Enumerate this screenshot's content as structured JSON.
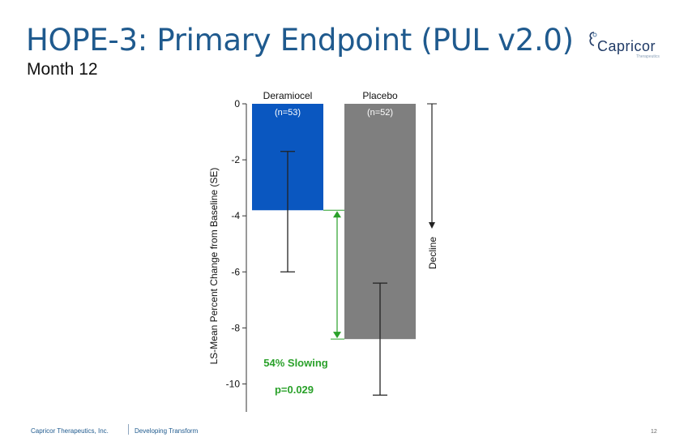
{
  "slide": {
    "title": "HOPE-3: Primary Endpoint (PUL v2.0)",
    "subtitle": "Month 12",
    "logo_text": "Capricor",
    "logo_sub": "Therapeutics",
    "footer_company": "Capricor Therapeutics, Inc.",
    "footer_tagline": "Developing Transform",
    "page_number": "12",
    "colors": {
      "title": "#1f5a8e",
      "logo": "#1f3a66"
    }
  },
  "chart_data": {
    "type": "bar",
    "categories": [
      "Deramiocel",
      "Placebo"
    ],
    "sample_sizes": [
      "(n=53)",
      "(n=52)"
    ],
    "values": [
      -3.8,
      -8.4
    ],
    "error_low": [
      -6.0,
      -10.4
    ],
    "error_high": [
      -1.7,
      -6.4
    ],
    "bar_colors": [
      "#0a57c0",
      "#7f7f7f"
    ],
    "ylabel": "LS-Mean Percent Change from Baseline (SE)",
    "ylim": [
      -11,
      0
    ],
    "yticks": [
      0,
      -2,
      -4,
      -6,
      -8,
      -10
    ],
    "ytick_labels": [
      "0",
      "-2",
      "-4",
      "-6",
      "-8",
      "-10"
    ],
    "grid": false,
    "annotations": {
      "difference_label": "54% Slowing",
      "p_value": "p=0.029",
      "direction_label": "Decline",
      "annotation_color": "#2aa12a"
    }
  }
}
